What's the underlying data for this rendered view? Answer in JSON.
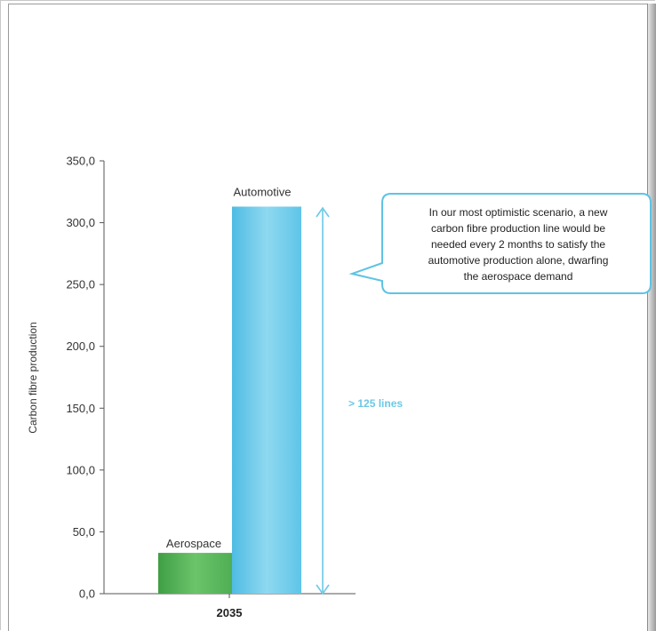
{
  "chart_data": {
    "type": "bar",
    "categories": [
      "2035"
    ],
    "series": [
      {
        "name": "Aerospace",
        "values": [
          33
        ],
        "color": "#5fb85f"
      },
      {
        "name": "Automotive",
        "values": [
          313
        ],
        "color": "#5dc4e8"
      }
    ],
    "ylabel": "Carbon fibre production",
    "ylim": [
      0,
      350
    ],
    "yticks": [
      "0,0",
      "50,0",
      "100,0",
      "150,0",
      "200,0",
      "250,0",
      "300,0",
      "350,0"
    ],
    "annotations": {
      "callout": [
        "In our most optimistic scenario, a new",
        "carbon fibre production line would be",
        "needed every 2 months to satisfy the",
        "automotive production alone, dwarfing",
        "the aerospace demand"
      ],
      "arrow_label": "> 125 lines",
      "accent_color": "#5fc3e4"
    }
  }
}
